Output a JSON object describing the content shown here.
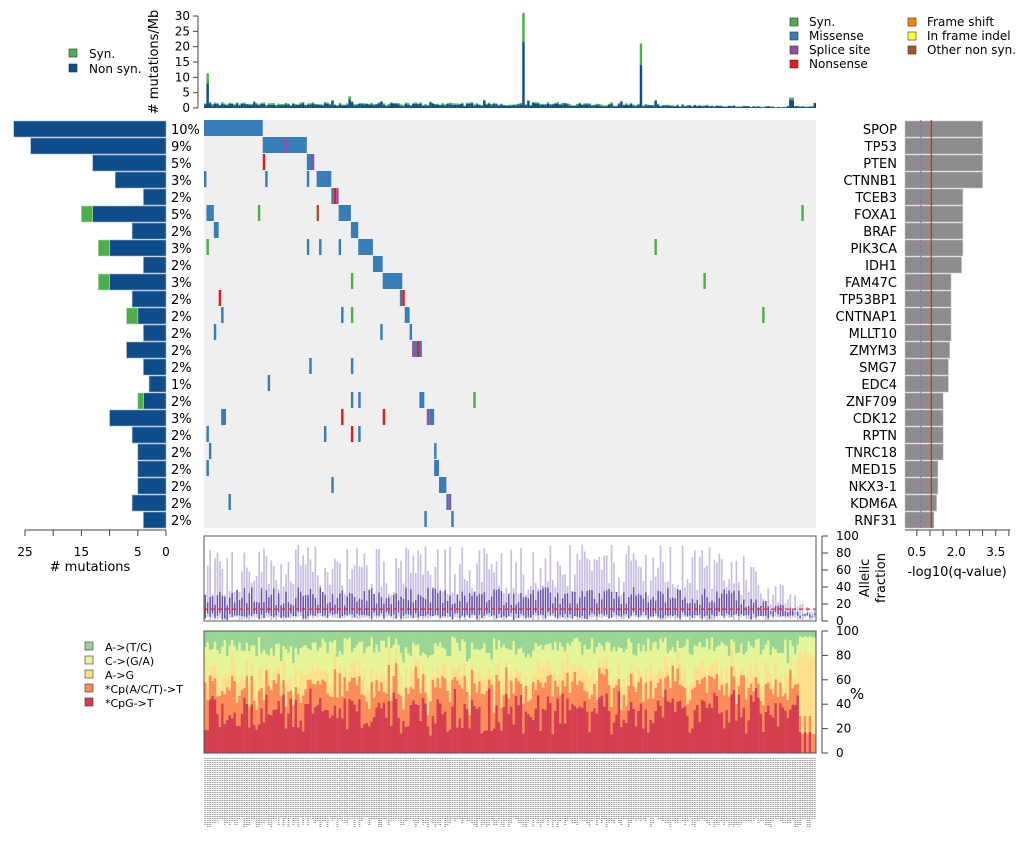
{
  "chart_data": [
    {
      "id": "mutation_rate",
      "type": "bar",
      "stacked": true,
      "ylabel": "# mutations/Mb",
      "ylim": [
        0,
        30
      ],
      "yticks": [
        0,
        5,
        10,
        15,
        20,
        25,
        30
      ],
      "legend": {
        "placement": "top-left",
        "entries": [
          {
            "label": "Syn.",
            "color": "#4daf4a"
          },
          {
            "label": "Non syn.",
            "color": "#0f4d8a"
          }
        ]
      },
      "n_samples": 250,
      "highlights": [
        {
          "sample_index": 1,
          "non_syn": 8,
          "syn": 3.3
        },
        {
          "sample_index": 59,
          "non_syn": 2.8,
          "syn": 1
        },
        {
          "sample_index": 60,
          "non_syn": 1.8,
          "syn": 0.4
        },
        {
          "sample_index": 130,
          "non_syn": 21.5,
          "syn": 9.5
        },
        {
          "sample_index": 178,
          "non_syn": 14,
          "syn": 7
        },
        {
          "sample_index": 239,
          "non_syn": 2.6,
          "syn": 0.8
        },
        {
          "sample_index": 240,
          "non_syn": 2.5,
          "syn": 0.9
        }
      ],
      "baseline_non_syn": 1.0,
      "baseline_syn": 0.4,
      "note": "Most samples ~0.5-2 mutations/Mb, declining toward the right"
    },
    {
      "id": "mutation_type_legend",
      "type": "legend",
      "placement": "top-right",
      "entries": [
        {
          "label": "Syn.",
          "color": "#4daf4a"
        },
        {
          "label": "Missense",
          "color": "#377eb8"
        },
        {
          "label": "Splice site",
          "color": "#984ea3"
        },
        {
          "label": "Nonsense",
          "color": "#e41a1c"
        },
        {
          "label": "Frame shift",
          "color": "#ff7f00"
        },
        {
          "label": "In frame indel",
          "color": "#ffff33"
        },
        {
          "label": "Other non syn.",
          "color": "#a65628"
        }
      ]
    },
    {
      "id": "gene_mutation_counts",
      "type": "bar",
      "orientation": "horizontal",
      "xlabel": "# mutations",
      "xlim": [
        25,
        0
      ],
      "xticks": [
        25,
        20,
        15,
        10,
        5,
        0
      ],
      "xtick_labels": [
        "25",
        "",
        "15",
        "",
        "5",
        "0"
      ],
      "genes": [
        "SPOP",
        "TP53",
        "PTEN",
        "CTNNB1",
        "TCEB3",
        "FOXA1",
        "BRAF",
        "PIK3CA",
        "IDH1",
        "FAM47C",
        "TP53BP1",
        "CNTNAP1",
        "MLLT10",
        "ZMYM3",
        "SMG7",
        "EDC4",
        "ZNF709",
        "CDK12",
        "RPTN",
        "TNRC18",
        "MED15",
        "NKX3-1",
        "KDM6A",
        "RNF31"
      ],
      "percent_labels": [
        "10%",
        "9%",
        "5%",
        "3%",
        "2%",
        "5%",
        "2%",
        "3%",
        "2%",
        "3%",
        "2%",
        "2%",
        "2%",
        "2%",
        "2%",
        "1%",
        "2%",
        "3%",
        "2%",
        "2%",
        "2%",
        "2%",
        "2%",
        "2%"
      ],
      "series": [
        {
          "name": "Non syn.",
          "color": "#0f4d8a",
          "values": [
            27,
            24,
            13,
            9,
            4,
            13,
            6,
            10,
            4,
            10,
            6,
            5,
            4,
            7,
            4,
            3,
            4,
            10,
            6,
            5,
            5,
            5,
            6,
            4
          ]
        },
        {
          "name": "Syn.",
          "color": "#4daf4a",
          "values": [
            0,
            0,
            0,
            0,
            0,
            2,
            0,
            2,
            0,
            2,
            0,
            2,
            0,
            0,
            0,
            0,
            1,
            0,
            0,
            0,
            0,
            0,
            0,
            0
          ]
        }
      ]
    },
    {
      "id": "mutation_matrix",
      "type": "heatmap",
      "n_samples": 250,
      "background": "#efefef",
      "rows": [
        "SPOP",
        "TP53",
        "PTEN",
        "CTNNB1",
        "TCEB3",
        "FOXA1",
        "BRAF",
        "PIK3CA",
        "IDH1",
        "FAM47C",
        "TP53BP1",
        "CNTNAP1",
        "MLLT10",
        "ZMYM3",
        "SMG7",
        "EDC4",
        "ZNF709",
        "CDK12",
        "RPTN",
        "TNRC18",
        "MED15",
        "NKX3-1",
        "KDM6A",
        "RNF31"
      ],
      "cells": [
        {
          "row": 0,
          "from": 0,
          "to": 23,
          "type": "Missense"
        },
        {
          "row": 1,
          "from": 24,
          "to": 41,
          "type": "Missense"
        },
        {
          "row": 1,
          "from": 33,
          "to": 33,
          "type": "Splice site"
        },
        {
          "row": 2,
          "from": 24,
          "to": 24,
          "type": "Nonsense"
        },
        {
          "row": 2,
          "from": 42,
          "to": 44,
          "type": "Missense"
        },
        {
          "row": 2,
          "from": 44,
          "to": 44,
          "type": "Splice site"
        },
        {
          "row": 3,
          "from": 0,
          "to": 0,
          "type": "Missense"
        },
        {
          "row": 3,
          "from": 25,
          "to": 25,
          "type": "Missense"
        },
        {
          "row": 3,
          "from": 42,
          "to": 42,
          "type": "Missense"
        },
        {
          "row": 3,
          "from": 46,
          "to": 51,
          "type": "Missense"
        },
        {
          "row": 4,
          "from": 52,
          "to": 52,
          "type": "Missense"
        },
        {
          "row": 4,
          "from": 53,
          "to": 53,
          "type": "Nonsense"
        },
        {
          "row": 4,
          "from": 54,
          "to": 54,
          "type": "Splice site"
        },
        {
          "row": 5,
          "from": 1,
          "to": 3,
          "type": "Missense"
        },
        {
          "row": 5,
          "from": 22,
          "to": 22,
          "type": "Syn."
        },
        {
          "row": 5,
          "from": 46,
          "to": 46,
          "type": "Other non syn."
        },
        {
          "row": 5,
          "from": 55,
          "to": 59,
          "type": "Missense"
        },
        {
          "row": 5,
          "from": 244,
          "to": 244,
          "type": "Syn."
        },
        {
          "row": 6,
          "from": 4,
          "to": 5,
          "type": "Missense"
        },
        {
          "row": 6,
          "from": 60,
          "to": 62,
          "type": "Missense"
        },
        {
          "row": 7,
          "from": 1,
          "to": 1,
          "type": "Syn."
        },
        {
          "row": 7,
          "from": 42,
          "to": 42,
          "type": "Missense"
        },
        {
          "row": 7,
          "from": 47,
          "to": 47,
          "type": "Missense"
        },
        {
          "row": 7,
          "from": 55,
          "to": 55,
          "type": "Missense"
        },
        {
          "row": 7,
          "from": 63,
          "to": 68,
          "type": "Missense"
        },
        {
          "row": 7,
          "from": 184,
          "to": 184,
          "type": "Syn."
        },
        {
          "row": 8,
          "from": 69,
          "to": 72,
          "type": "Missense"
        },
        {
          "row": 9,
          "from": 60,
          "to": 60,
          "type": "Syn."
        },
        {
          "row": 9,
          "from": 73,
          "to": 80,
          "type": "Missense"
        },
        {
          "row": 9,
          "from": 204,
          "to": 204,
          "type": "Syn."
        },
        {
          "row": 10,
          "from": 6,
          "to": 6,
          "type": "Nonsense"
        },
        {
          "row": 10,
          "from": 80,
          "to": 80,
          "type": "Missense"
        },
        {
          "row": 10,
          "from": 81,
          "to": 81,
          "type": "Nonsense"
        },
        {
          "row": 11,
          "from": 7,
          "to": 7,
          "type": "Missense"
        },
        {
          "row": 11,
          "from": 56,
          "to": 56,
          "type": "Missense"
        },
        {
          "row": 11,
          "from": 60,
          "to": 60,
          "type": "Syn."
        },
        {
          "row": 11,
          "from": 82,
          "to": 83,
          "type": "Missense"
        },
        {
          "row": 11,
          "from": 228,
          "to": 228,
          "type": "Syn."
        },
        {
          "row": 12,
          "from": 4,
          "to": 4,
          "type": "Missense"
        },
        {
          "row": 12,
          "from": 72,
          "to": 72,
          "type": "Missense"
        },
        {
          "row": 12,
          "from": 84,
          "to": 84,
          "type": "Missense"
        },
        {
          "row": 13,
          "from": 85,
          "to": 85,
          "type": "Splice site"
        },
        {
          "row": 13,
          "from": 86,
          "to": 86,
          "type": "Missense"
        },
        {
          "row": 13,
          "from": 87,
          "to": 87,
          "type": "Nonsense"
        },
        {
          "row": 13,
          "from": 88,
          "to": 88,
          "type": "Missense"
        },
        {
          "row": 14,
          "from": 43,
          "to": 43,
          "type": "Missense"
        },
        {
          "row": 14,
          "from": 60,
          "to": 60,
          "type": "Missense"
        },
        {
          "row": 15,
          "from": 26,
          "to": 26,
          "type": "Missense"
        },
        {
          "row": 16,
          "from": 60,
          "to": 60,
          "type": "Missense"
        },
        {
          "row": 16,
          "from": 63,
          "to": 63,
          "type": "Missense"
        },
        {
          "row": 16,
          "from": 88,
          "to": 89,
          "type": "Missense"
        },
        {
          "row": 16,
          "from": 110,
          "to": 110,
          "type": "Syn."
        },
        {
          "row": 17,
          "from": 7,
          "to": 8,
          "type": "Missense"
        },
        {
          "row": 17,
          "from": 56,
          "to": 56,
          "type": "Nonsense"
        },
        {
          "row": 17,
          "from": 73,
          "to": 73,
          "type": "Nonsense"
        },
        {
          "row": 17,
          "from": 91,
          "to": 91,
          "type": "Splice site"
        },
        {
          "row": 17,
          "from": 92,
          "to": 93,
          "type": "Missense"
        },
        {
          "row": 18,
          "from": 1,
          "to": 1,
          "type": "Missense"
        },
        {
          "row": 18,
          "from": 49,
          "to": 49,
          "type": "Missense"
        },
        {
          "row": 18,
          "from": 60,
          "to": 60,
          "type": "Nonsense"
        },
        {
          "row": 18,
          "from": 63,
          "to": 63,
          "type": "Missense"
        },
        {
          "row": 19,
          "from": 2,
          "to": 2,
          "type": "Missense"
        },
        {
          "row": 19,
          "from": 94,
          "to": 94,
          "type": "Missense"
        },
        {
          "row": 20,
          "from": 1,
          "to": 1,
          "type": "Missense"
        },
        {
          "row": 20,
          "from": 94,
          "to": 95,
          "type": "Missense"
        },
        {
          "row": 21,
          "from": 52,
          "to": 52,
          "type": "Missense"
        },
        {
          "row": 21,
          "from": 96,
          "to": 98,
          "type": "Missense"
        },
        {
          "row": 22,
          "from": 10,
          "to": 10,
          "type": "Missense"
        },
        {
          "row": 22,
          "from": 99,
          "to": 99,
          "type": "Missense"
        },
        {
          "row": 22,
          "from": 100,
          "to": 100,
          "type": "Splice site"
        },
        {
          "row": 23,
          "from": 90,
          "to": 90,
          "type": "Missense"
        },
        {
          "row": 23,
          "from": 101,
          "to": 101,
          "type": "Missense"
        }
      ]
    },
    {
      "id": "q_values",
      "type": "bar",
      "orientation": "horizontal",
      "xlabel": "-log10(q-value)",
      "xlim": [
        0,
        4
      ],
      "xticks": [
        0.5,
        1.0,
        1.5,
        2.0,
        2.5,
        3.0,
        3.5,
        4.0
      ],
      "xtick_labels": [
        "0.5",
        "",
        "",
        "2.0",
        "",
        "",
        "3.5",
        ""
      ],
      "genes": [
        "SPOP",
        "TP53",
        "PTEN",
        "CTNNB1",
        "TCEB3",
        "FOXA1",
        "BRAF",
        "PIK3CA",
        "IDH1",
        "FAM47C",
        "TP53BP1",
        "CNTNAP1",
        "MLLT10",
        "ZMYM3",
        "SMG7",
        "EDC4",
        "ZNF709",
        "CDK12",
        "RPTN",
        "TNRC18",
        "MED15",
        "NKX3-1",
        "KDM6A",
        "RNF31"
      ],
      "values": [
        2.95,
        2.95,
        2.95,
        2.95,
        2.2,
        2.2,
        2.2,
        2.2,
        2.15,
        1.75,
        1.75,
        1.75,
        1.75,
        1.7,
        1.65,
        1.65,
        1.45,
        1.45,
        1.45,
        1.45,
        1.25,
        1.25,
        1.2,
        1.1
      ],
      "bar_color": "#8c8c8c",
      "thresholds": [
        {
          "value": 0.6,
          "style": "dashed",
          "color": "#9966cc"
        },
        {
          "value": 1.0,
          "style": "solid",
          "color": "#dd2222"
        }
      ]
    },
    {
      "id": "allelic_fraction",
      "type": "scatter",
      "ylabel": "Allelic fraction",
      "ylim": [
        0,
        100
      ],
      "yticks": [
        0,
        20,
        40,
        60,
        80,
        100
      ],
      "n_samples": 250,
      "reference_line": {
        "value": 14,
        "style": "dashed",
        "color": "#ee2222"
      },
      "color_light": "#c8bfe0",
      "color_dark": "#6a51a3",
      "note": "Per-sample vertical ranges of allelic fractions; medians ~15-35%, maxima up to ~95%"
    },
    {
      "id": "mutation_spectrum",
      "type": "bar",
      "stacked": true,
      "ylabel": "%",
      "ylim": [
        0,
        100
      ],
      "yticks": [
        0,
        20,
        40,
        60,
        80,
        100
      ],
      "n_samples": 250,
      "legend": {
        "placement": "left",
        "entries": [
          {
            "label": "A->(T/C)",
            "color": "#99d594"
          },
          {
            "label": "C->(G/A)",
            "color": "#e6f598"
          },
          {
            "label": "A->G",
            "color": "#fee08b"
          },
          {
            "label": "*Cp(A/C/T)->T",
            "color": "#fc8d59"
          },
          {
            "label": "*CpG->T",
            "color": "#d53e4f"
          }
        ]
      },
      "typical_percent": {
        "*CpG->T": 35,
        "*Cp(A/C/T)->T": 20,
        "A->G": 12,
        "C->(G/A)": 20,
        "A->(T/C)": 13
      }
    }
  ]
}
